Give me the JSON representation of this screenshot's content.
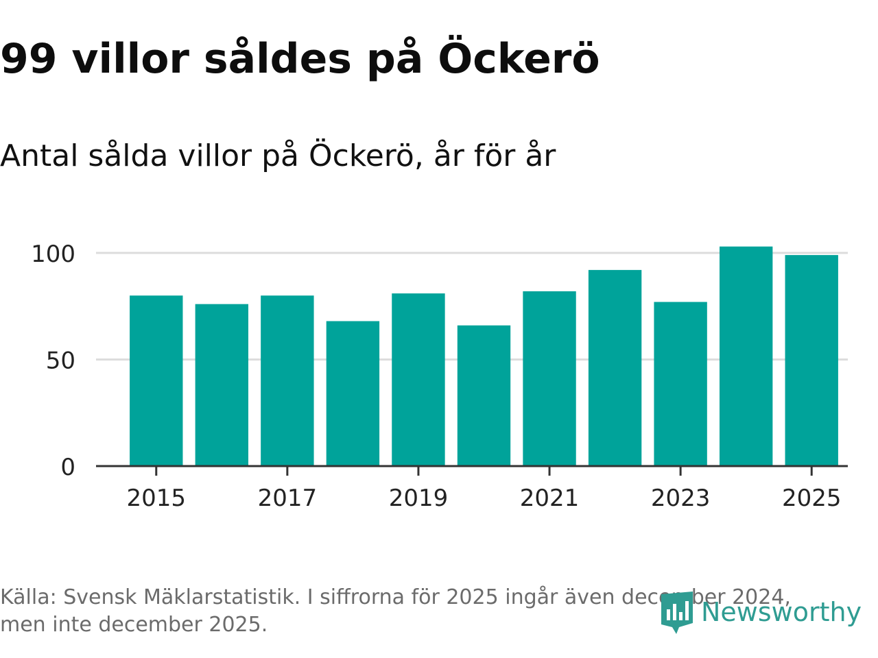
{
  "header": {
    "title": "99 villor såldes på Öckerö",
    "subtitle": "Antal sålda villor på Öckerö, år för år"
  },
  "footer": {
    "source_line1": "Källa: Svensk Mäklarstatistik. I siffrorna för 2025 ingår även december 2024,",
    "source_line2": "men inte december 2025."
  },
  "logo": {
    "text": "Newsworthy",
    "icon": "newsworthy-logo-icon"
  },
  "colors": {
    "bar": "#00a39a",
    "grid": "#dcdcdc",
    "axis": "#333333",
    "logo": "#2f9c92"
  },
  "chart_data": {
    "type": "bar",
    "title": "Antal sålda villor på Öckerö, år för år",
    "xlabel": "",
    "ylabel": "",
    "categories": [
      "2015",
      "2016",
      "2017",
      "2018",
      "2019",
      "2020",
      "2021",
      "2022",
      "2023",
      "2024",
      "2025"
    ],
    "values": [
      80,
      76,
      80,
      68,
      81,
      66,
      82,
      92,
      77,
      103,
      99
    ],
    "x_tick_labels": [
      "2015",
      "2017",
      "2019",
      "2021",
      "2023",
      "2025"
    ],
    "y_ticks": [
      0,
      50,
      100
    ],
    "y_tick_labels": [
      "0",
      "50",
      "100"
    ],
    "ylim": [
      0,
      105
    ],
    "grid": true,
    "legend": "none"
  }
}
